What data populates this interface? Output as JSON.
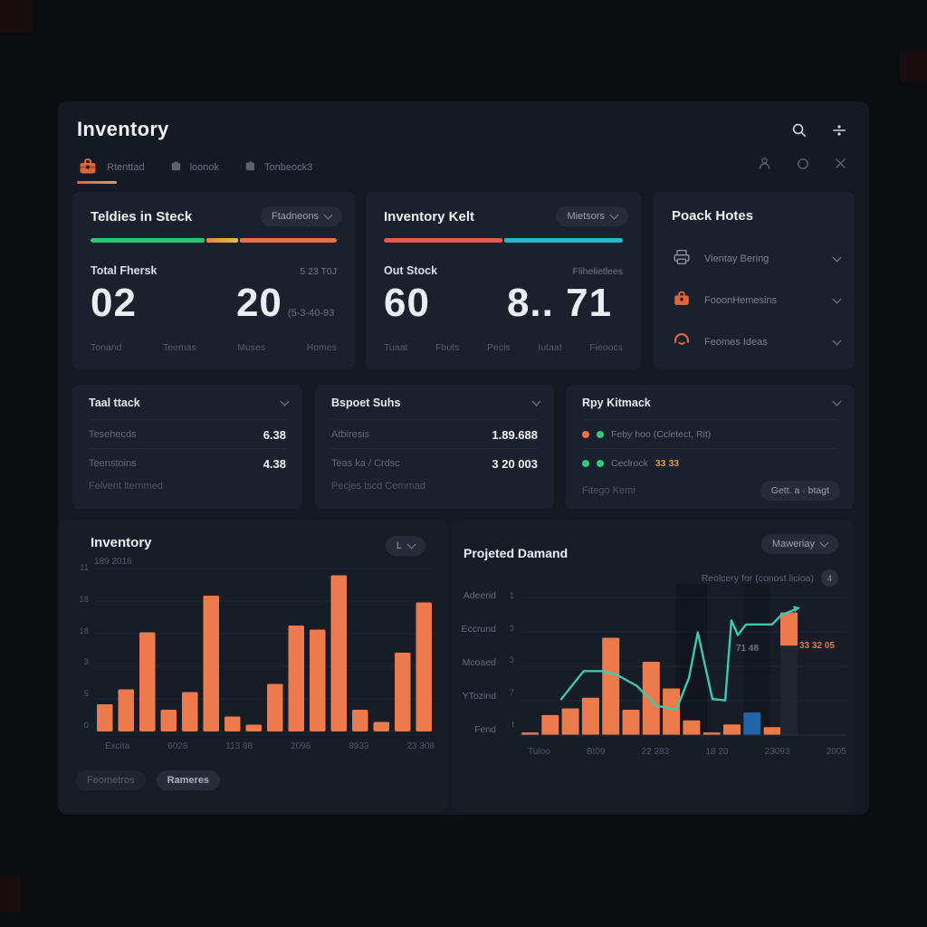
{
  "header": {
    "title": "Inventory",
    "tabs": [
      {
        "label": "Rtenttad",
        "active": true
      },
      {
        "label": "loonok",
        "active": false
      },
      {
        "label": "Tonbeock3",
        "active": false
      }
    ],
    "icons": [
      "search-icon",
      "tune-icon",
      "user-icon",
      "circle-icon",
      "close-icon"
    ]
  },
  "colors": {
    "accent_orange": "#ed7a4d",
    "green": "#31c578",
    "teal": "#2ab5c8",
    "red": "#e05a52",
    "blue": "#1f63a8",
    "line_teal": "#3cc9b2",
    "warn_yellow": "#d99b44"
  },
  "stat_cards": [
    {
      "title": "Teldies in Steck",
      "dropdown": "Ftadneons",
      "progress": [
        {
          "color": "#2fc274",
          "pct": 47
        },
        {
          "color": "linear-gradient(90deg,#e6873d,#d9c14c)",
          "pct": 13
        },
        {
          "color": "#e3714a",
          "pct": 40
        }
      ],
      "row_label": "Total Fhersk",
      "row_value": "5 23 T0J",
      "big1": "02",
      "big2": "20",
      "big2_suffix": "(5-3-40-93",
      "footer_labels": [
        "Tonand",
        "Teemas",
        "Muses",
        "Homes"
      ]
    },
    {
      "title": "Inventory Kelt",
      "dropdown": "Mietsors",
      "progress": [
        {
          "color": "#e05a52",
          "pct": 50
        },
        {
          "color": "#2ab5c8",
          "pct": 50
        }
      ],
      "row_label": "Out Stock",
      "row_value": "Flihelietlees",
      "big1": "60",
      "big2": "8.. 71",
      "big2_suffix": "",
      "footer_labels": [
        "Tuaat",
        "Fbuts",
        "Pecis",
        "Iutaat",
        "Fieoocs"
      ]
    }
  ],
  "pack_card": {
    "title": "Poack Hotes",
    "items": [
      {
        "icon": "printer-icon",
        "label": "Vientay Bering"
      },
      {
        "icon": "briefcase-icon",
        "label": "FooonHemesins"
      },
      {
        "icon": "headset-icon",
        "label": "Feomes Ideas"
      }
    ]
  },
  "list_cards": [
    {
      "title": "Taal ttack",
      "rows": [
        {
          "label": "Tesehecds",
          "value": "6.38"
        },
        {
          "label": "Teenstoins",
          "value": "4.38"
        }
      ],
      "footer": "Felvent lternmed"
    },
    {
      "title": "Bspoet Suhs",
      "rows": [
        {
          "label": "Atbiresis",
          "value": "1.89.688"
        },
        {
          "label": "Teas ka / Crdsc",
          "value": "3 20 003"
        }
      ],
      "footer": "Pecjes tscd Cemmad"
    }
  ],
  "status_card": {
    "title": "Rpy Kitmack",
    "rows": [
      {
        "dot1": "#e8734a",
        "dot2": "#35c77e",
        "label": "Feby hoo (Ccletect, Rit)",
        "value": ""
      },
      {
        "dot1": "#35c77e",
        "dot2": "#35c77e",
        "label": "Ceclrock",
        "value": "33 33"
      }
    ],
    "footer": "Fitego Kemi",
    "button": "Gett. a · btagt"
  },
  "chart_data": [
    {
      "type": "bar",
      "title": "Inventory",
      "subtitle": "189 2016",
      "dropdown": "L",
      "y_ticks": [
        "11",
        "18",
        "18",
        "3",
        "5",
        "0"
      ],
      "categories": [
        "Excita",
        "6028",
        "113 88",
        "2098",
        "8933",
        "23 308"
      ],
      "values": [
        2.0,
        3.1,
        7.3,
        1.6,
        2.9,
        10.0,
        1.1,
        0.5,
        3.5,
        7.8,
        7.5,
        11.5,
        1.6,
        0.7,
        5.8,
        9.5
      ],
      "ylim": [
        0,
        12
      ],
      "bar_color": "#ed7a4d",
      "legend_pills": [
        "Feometros",
        "Rameres"
      ],
      "grid": true,
      "legend_position": "bottom"
    },
    {
      "type": "bar+line",
      "title": "Projeted Damand",
      "dropdown": "Maweriay",
      "annotation": "Reolcery for (conost licioa)",
      "annotation_badge": "4",
      "row_labels": [
        "Adeerid",
        "Eccrund",
        "Mcoaed",
        "YTozind",
        "Fend"
      ],
      "y_ticks": [
        "1",
        "3",
        "3",
        "7",
        "t"
      ],
      "categories": [
        "Tuloo",
        "Bt09",
        "22 283",
        "18 20",
        "23093",
        "2005"
      ],
      "bar_values": [
        0.2,
        1.5,
        2.0,
        2.8,
        7.3,
        1.9,
        5.5,
        3.5,
        1.1,
        0.2,
        0.8,
        1.7,
        0.6
      ],
      "bar_color": "#ed7a4d",
      "highlight_index": 11,
      "highlight_color": "#1f63a8",
      "floating_bar": {
        "from": 6.7,
        "to": 9.2
      },
      "line_color": "#3cc9b2",
      "line": [
        [
          12.5,
          2.7
        ],
        [
          19.4,
          4.8
        ],
        [
          25,
          4.8
        ],
        [
          29.7,
          4.5
        ],
        [
          35.6,
          3.7
        ],
        [
          41.7,
          2.2
        ],
        [
          47.8,
          1.9
        ],
        [
          51.7,
          4.3
        ],
        [
          54.4,
          7.7
        ],
        [
          58.9,
          2.7
        ],
        [
          62.8,
          2.6
        ],
        [
          64.7,
          8.6
        ],
        [
          66.7,
          7.5
        ],
        [
          69.2,
          8.3
        ],
        [
          77.2,
          8.3
        ],
        [
          80,
          9.0
        ],
        [
          85,
          9.5
        ]
      ],
      "ylim": [
        0,
        11
      ],
      "point_labels": [
        {
          "text": "71 48",
          "color": "#6b7482"
        },
        {
          "text": "33 32 05",
          "color": "#e0764a"
        }
      ],
      "grid": true
    }
  ]
}
